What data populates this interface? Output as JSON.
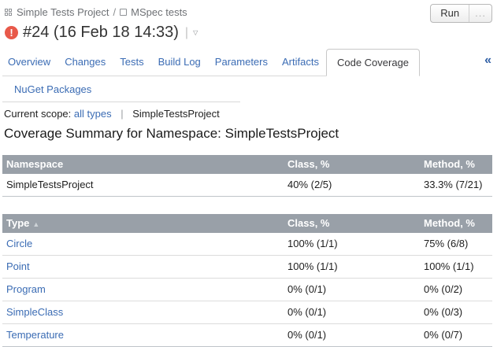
{
  "breadcrumb": {
    "project": "Simple Tests Project",
    "separator": "/",
    "build_config": "MSpec tests"
  },
  "run": {
    "label": "Run",
    "more_label": "..."
  },
  "build": {
    "title": "#24 (16 Feb 18 14:33)",
    "status": "failed"
  },
  "icons": {
    "status_glyph": "!",
    "title_separator": "|",
    "caret_down": "▽",
    "collapse": "«",
    "sort_asc": "▲"
  },
  "tabs": {
    "row1": [
      {
        "label": "Overview",
        "active": false
      },
      {
        "label": "Changes",
        "active": false
      },
      {
        "label": "Tests",
        "active": false
      },
      {
        "label": "Build Log",
        "active": false
      },
      {
        "label": "Parameters",
        "active": false
      },
      {
        "label": "Artifacts",
        "active": false
      },
      {
        "label": "Code Coverage",
        "active": true
      }
    ],
    "row2": [
      {
        "label": "NuGet Packages",
        "active": false
      }
    ]
  },
  "scope": {
    "label": "Current scope:",
    "all_types_link": "all types",
    "divider": "|",
    "current": "SimpleTestsProject"
  },
  "heading": "Coverage Summary for Namespace: SimpleTestsProject",
  "namespace_table": {
    "headers": [
      "Namespace",
      "Class, %",
      "Method, %"
    ],
    "rows": [
      [
        "SimpleTestsProject",
        "40% (2/5)",
        "33.3% (7/21)"
      ]
    ]
  },
  "type_table": {
    "headers": [
      "Type",
      "Class, %",
      "Method, %"
    ],
    "sort_column": "Type",
    "sort_direction": "ascending",
    "rows": [
      [
        "Circle",
        "100% (1/1)",
        "75% (6/8)"
      ],
      [
        "Point",
        "100% (1/1)",
        "100% (1/1)"
      ],
      [
        "Program",
        "0% (0/1)",
        "0% (0/2)"
      ],
      [
        "SimpleClass",
        "0% (0/1)",
        "0% (0/3)"
      ],
      [
        "Temperature",
        "0% (0/1)",
        "0% (0/7)"
      ]
    ]
  },
  "colors": {
    "link_blue": "#3b6cb4",
    "table_header_bg": "#99a0a8",
    "status_red": "#e8594a",
    "tab_border": "#c8c8c8",
    "row_border": "#dcdcdc"
  }
}
